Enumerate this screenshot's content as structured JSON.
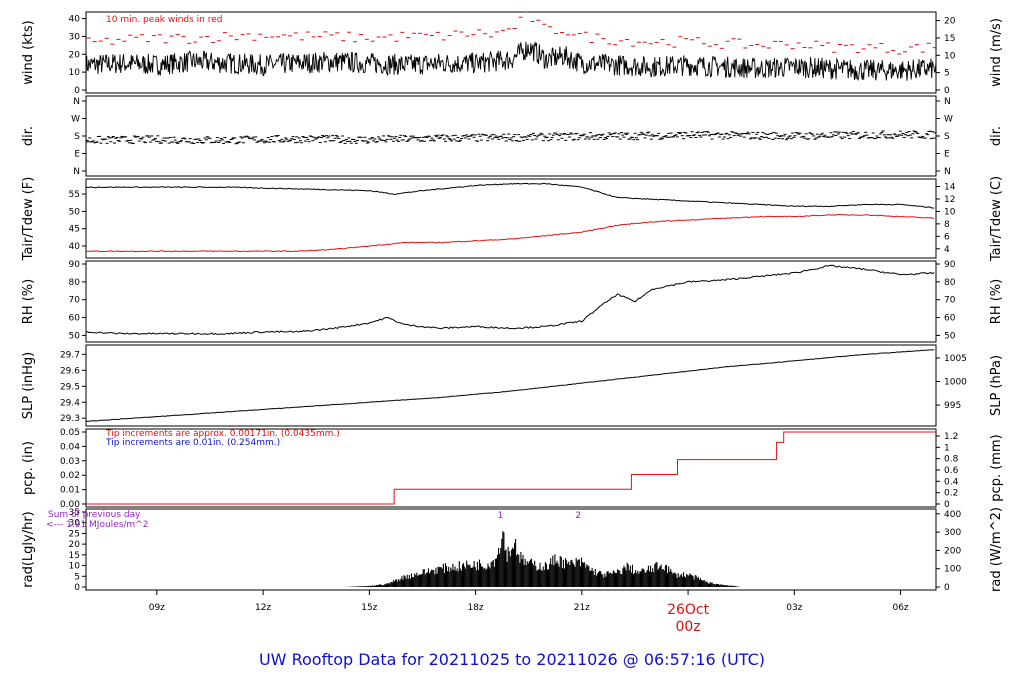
{
  "footer": {
    "title": "UW Rooftop Data for 20211025  to  20211026 @ 06:57:16  (UTC)",
    "color": "#1010d0"
  },
  "chart_data": [
    {
      "type": "line",
      "ylabel": "wind (kts)",
      "ylabel_right": "wind (m/s)",
      "ylim": [
        0,
        42
      ],
      "yticks": [
        "0",
        "10",
        "20",
        "30",
        "40"
      ],
      "yticks_right": [
        "0",
        "5",
        "10",
        "15",
        "20"
      ],
      "annotation": "10 min. peak winds in red",
      "annotation_color": "#e01010",
      "series": [
        {
          "color": "#000000",
          "x": [
            7,
            8,
            9,
            10,
            11,
            12,
            13,
            14,
            15,
            16,
            17,
            18,
            18.5,
            19,
            19.5,
            20,
            20.5,
            21,
            22,
            23,
            24,
            25,
            26,
            27,
            28,
            29,
            30,
            31
          ],
          "y": [
            14,
            15,
            14,
            16,
            15,
            14,
            15,
            16,
            15,
            14,
            15,
            15,
            16,
            17,
            24,
            17,
            19,
            15,
            14,
            13,
            14,
            13,
            12,
            13,
            12,
            11,
            11,
            12
          ]
        },
        {
          "color": "#e01010",
          "x": [
            7,
            8,
            9,
            10,
            11,
            12,
            13,
            14,
            15,
            16,
            17,
            18,
            18.5,
            19,
            19.5,
            20,
            20.5,
            21,
            22,
            23,
            24,
            25,
            26,
            27,
            28,
            29,
            30,
            31
          ],
          "y": [
            26,
            28,
            29,
            29,
            30,
            31,
            30,
            30,
            29,
            30,
            30,
            32,
            31,
            34,
            42,
            33,
            34,
            30,
            28,
            27,
            27,
            26,
            25,
            26,
            24,
            24,
            23,
            24
          ]
        }
      ]
    },
    {
      "type": "scatter",
      "ylabel": "dir.",
      "ylabel_right": "dir.",
      "yticks": [
        "N",
        "W",
        "S",
        "E",
        "N"
      ],
      "yticks_right": [
        "N",
        "W",
        "S",
        "E",
        "N"
      ],
      "x": [
        7,
        8,
        9,
        10,
        11,
        12,
        13,
        14,
        15,
        16,
        17,
        18,
        19,
        20,
        21,
        22,
        23,
        24,
        25,
        26,
        27,
        28,
        29,
        30,
        31
      ],
      "y": [
        158,
        160,
        162,
        160,
        158,
        162,
        165,
        163,
        160,
        165,
        168,
        170,
        172,
        175,
        178,
        180,
        182,
        185,
        183,
        182,
        180,
        182,
        185,
        188,
        185
      ]
    },
    {
      "type": "line",
      "ylabel": "Tair/Tdew (F)",
      "ylabel_right": "Tair/Tdew (C)",
      "ylim": [
        37.4,
        58.5
      ],
      "yticks": [
        "40",
        "45",
        "50",
        "55"
      ],
      "yticks_right": [
        "4",
        "6",
        "8",
        "10",
        "12",
        "14"
      ],
      "series": [
        {
          "color": "#000000",
          "x": [
            7,
            9,
            11,
            13,
            15,
            15.7,
            16.5,
            18,
            19,
            20,
            21,
            22,
            23,
            24,
            25,
            26,
            27,
            28,
            29,
            30,
            31
          ],
          "y": [
            57,
            57,
            57,
            56.5,
            56,
            55,
            56,
            57.5,
            58,
            58,
            57,
            54,
            53.5,
            53,
            52.5,
            52,
            51.5,
            51.5,
            52,
            52,
            51
          ]
        },
        {
          "color": "#e01010",
          "x": [
            7,
            9,
            11,
            13,
            14,
            15,
            16,
            17,
            18,
            19,
            20,
            21,
            22,
            23,
            24,
            25,
            26,
            27,
            28,
            29,
            30,
            31
          ],
          "y": [
            38.5,
            38.5,
            38.5,
            38.5,
            39,
            40,
            41,
            41,
            41.5,
            42,
            43,
            44,
            46,
            47,
            47.5,
            48,
            48.5,
            48.5,
            49,
            49,
            48.5,
            48
          ]
        }
      ]
    },
    {
      "type": "line",
      "ylabel": "RH (%)",
      "ylabel_right": "RH (%)",
      "ylim": [
        48,
        90
      ],
      "yticks": [
        "50",
        "60",
        "70",
        "80",
        "90"
      ],
      "yticks_right": [
        "50",
        "60",
        "70",
        "80",
        "90"
      ],
      "series": [
        {
          "color": "#000000",
          "x": [
            7,
            8,
            9,
            10,
            11,
            12,
            13,
            14,
            15,
            15.5,
            16,
            17,
            18,
            19,
            20,
            21,
            21.5,
            22,
            22.5,
            23,
            23.5,
            24,
            25,
            26,
            27,
            28,
            29,
            30,
            31
          ],
          "y": [
            52,
            51,
            51,
            51,
            51,
            52,
            52,
            54,
            57,
            60,
            56,
            54,
            55,
            54,
            55,
            58,
            66,
            73,
            69,
            76,
            78,
            80,
            81,
            83,
            85,
            89,
            87,
            84,
            85
          ]
        }
      ]
    },
    {
      "type": "line",
      "ylabel": "SLP (inHg)",
      "ylabel_right": "SLP (hPa)",
      "ylim": [
        29.27,
        29.74
      ],
      "yticks": [
        "29.3",
        "29.4",
        "29.5",
        "29.6",
        "29.7"
      ],
      "yticks_right": [
        "995",
        "1000",
        "1005"
      ],
      "series": [
        {
          "color": "#000000",
          "x": [
            7,
            9,
            11,
            13,
            15,
            17,
            19,
            21,
            23,
            25,
            27,
            29,
            31
          ],
          "y": [
            29.28,
            29.31,
            29.34,
            29.37,
            29.4,
            29.43,
            29.47,
            29.52,
            29.57,
            29.62,
            29.66,
            29.7,
            29.73
          ]
        }
      ]
    },
    {
      "type": "line",
      "ylabel": "pcp. (in)",
      "ylabel_right": "pcp. (mm)",
      "ylim": [
        0,
        0.05
      ],
      "yticks": [
        "0.00",
        "0.01",
        "0.02",
        "0.03",
        "0.04",
        "0.05"
      ],
      "yticks_right": [
        "0",
        "0.2",
        "0.4",
        "0.6",
        "0.8",
        "1",
        "1.2"
      ],
      "notes": [
        {
          "text": "Tip increments are approx. 0.00171in. (0.0435mm.)",
          "color": "#e01010"
        },
        {
          "text": "Tip increments are 0.01in. (0.254mm.)",
          "color": "#1010d0"
        }
      ],
      "series": [
        {
          "color": "#e01010",
          "x": [
            7,
            15.7,
            15.7,
            22.4,
            22.4,
            23.7,
            23.7,
            26.5,
            26.5,
            26.7,
            26.7,
            31
          ],
          "y": [
            0,
            0,
            0.0103,
            0.0103,
            0.0205,
            0.0205,
            0.0308,
            0.0308,
            0.0428,
            0.0428,
            0.05,
            0.05
          ]
        }
      ]
    },
    {
      "type": "area",
      "ylabel": "rad(Lgly/hr)",
      "ylabel_right": "rad (W/m^2)",
      "ylim": [
        0,
        35
      ],
      "yticks": [
        "0",
        "5",
        "10",
        "15",
        "20",
        "25",
        "30",
        "35"
      ],
      "yticks_right": [
        "0",
        "100",
        "200",
        "300",
        "400"
      ],
      "notes": [
        {
          "text": "Sum of previous day",
          "color": "#9922cc"
        },
        {
          "text": "<--- 1.91 MJoules/m^2",
          "color": "#9922cc"
        }
      ],
      "markers": [
        {
          "x": 18.7,
          "label": "1",
          "color": "#9922cc"
        },
        {
          "x": 20.9,
          "label": "2",
          "color": "#9922cc"
        }
      ],
      "series": [
        {
          "color": "#000000",
          "x": [
            14.3,
            15,
            15.5,
            16,
            16.5,
            17,
            17.5,
            18,
            18.3,
            18.6,
            18.75,
            18.9,
            19.1,
            19.3,
            19.6,
            20,
            20.3,
            20.6,
            21,
            21.3,
            21.6,
            22,
            22.3,
            22.6,
            23,
            23.3,
            23.6,
            24,
            24.3,
            24.6,
            25,
            25.3,
            25.5
          ],
          "y": [
            0,
            0.5,
            1.5,
            5,
            7,
            9,
            10,
            11,
            11,
            14,
            28,
            16,
            22,
            13,
            11,
            10,
            14,
            11,
            12,
            8,
            6,
            7,
            10,
            7,
            9,
            11,
            6,
            6,
            4,
            2,
            1,
            0.5,
            0
          ]
        }
      ]
    }
  ],
  "x_axis": {
    "ticks": [
      {
        "x": 9,
        "label": "09z"
      },
      {
        "x": 12,
        "label": "12z"
      },
      {
        "x": 15,
        "label": "15z"
      },
      {
        "x": 18,
        "label": "18z"
      },
      {
        "x": 21,
        "label": "21z"
      },
      {
        "x": 27,
        "label": "03z"
      },
      {
        "x": 30,
        "label": "06z"
      }
    ],
    "date_marker": {
      "x": 24,
      "label": "26Oct",
      "sublabel": "00z",
      "color": "#e01010"
    }
  }
}
